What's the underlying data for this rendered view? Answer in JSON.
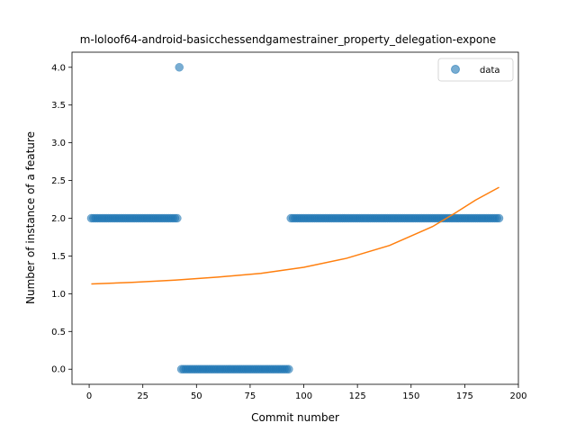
{
  "chart_data": {
    "type": "scatter",
    "title": "m-loloof64-android-basicchessendgamestrainer_property_delegation-expone",
    "xlabel": "Commit number",
    "ylabel": "Number of instance of a feature",
    "xlim": [
      -8,
      200
    ],
    "ylim": [
      -0.2,
      4.2
    ],
    "xticks": [
      0,
      25,
      50,
      75,
      100,
      125,
      150,
      175,
      200
    ],
    "yticks": [
      0.0,
      0.5,
      1.0,
      1.5,
      2.0,
      2.5,
      3.0,
      3.5,
      4.0
    ],
    "xtick_labels": [
      "0",
      "25",
      "50",
      "75",
      "100",
      "125",
      "150",
      "175",
      "200"
    ],
    "ytick_labels": [
      "0.0",
      "0.5",
      "1.0",
      "1.5",
      "2.0",
      "2.5",
      "3.0",
      "3.5",
      "4.0"
    ],
    "legend": {
      "position": "top-right",
      "entries": [
        "data"
      ]
    },
    "grid": false,
    "series": [
      {
        "name": "data",
        "kind": "scatter",
        "color": "#1f77b4",
        "segments": [
          {
            "x_start": 1,
            "x_end": 41,
            "y": 2
          },
          {
            "x_start": 42,
            "x_end": 42,
            "y": 4
          },
          {
            "x_start": 43,
            "x_end": 93,
            "y": 0
          },
          {
            "x_start": 94,
            "x_end": 191,
            "y": 2
          }
        ]
      },
      {
        "kind": "line",
        "color": "#ff7f0e",
        "x": [
          1,
          20,
          40,
          60,
          80,
          100,
          120,
          140,
          160,
          170,
          180,
          191
        ],
        "y": [
          1.13,
          1.15,
          1.18,
          1.22,
          1.27,
          1.35,
          1.47,
          1.64,
          1.89,
          2.06,
          2.24,
          2.41
        ]
      }
    ]
  }
}
